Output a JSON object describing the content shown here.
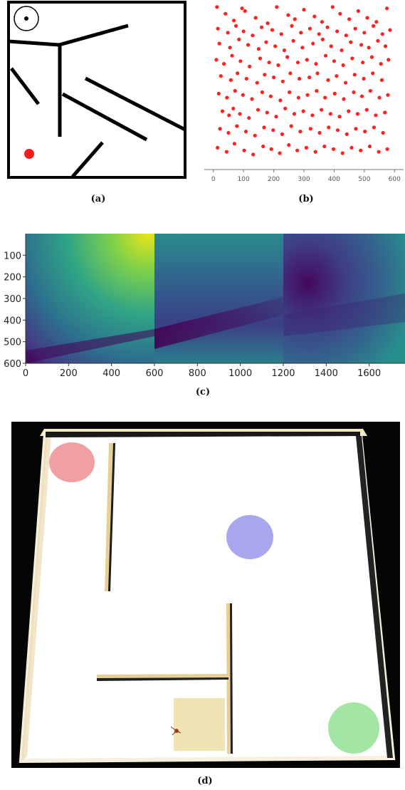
{
  "captions": {
    "a": "(a)",
    "b": "(b)",
    "c": "(c)",
    "d": "(d)"
  },
  "colors": {
    "maze_wall": "#000000",
    "goal_marker": "#ff1a1a",
    "scatter_point": "#ff2020",
    "arena_floor": "#ffffff",
    "arena_background": "#050505",
    "goal_red": "#f0a0a3",
    "goal_blue": "#a7a6ee",
    "goal_green": "#a3e6a3",
    "start_pad": "#f1e4b4"
  },
  "panel_a": {
    "walls_description_icon": "maze-map",
    "agent_icon": "agent-target-icon",
    "goal_icon": "goal-dot-icon"
  },
  "chart_data": [
    {
      "panel": "b",
      "type": "scatter",
      "title": "",
      "xlabel": "",
      "ylabel": "",
      "xlim": [
        -30,
        630
      ],
      "ylim": [
        0,
        600
      ],
      "x_ticks": [
        "0",
        "100",
        "200",
        "300",
        "400",
        "500",
        "600"
      ],
      "grid": false,
      "series": [
        {
          "x": [
            12,
            40,
            68,
            95,
            105,
            140,
            180,
            210,
            248,
            270,
            300,
            335,
            360,
            395,
            420,
            450,
            480,
            510,
            540,
            575,
            15,
            48,
            75,
            100,
            130,
            160,
            195,
            225,
            260,
            290,
            320,
            350,
            378,
            410,
            440,
            470,
            500,
            530,
            560,
            585,
            20,
            55,
            85,
            115,
            150,
            175,
            205,
            235,
            265,
            295,
            330,
            362,
            390,
            425,
            455,
            490,
            515,
            545,
            570,
            10,
            35,
            62,
            90,
            120,
            155,
            185,
            215,
            245,
            280,
            310,
            340,
            372,
            400,
            430,
            460,
            495,
            525,
            555,
            580,
            25,
            58,
            80,
            110,
            145,
            170,
            200,
            230,
            255,
            285,
            318,
            345,
            380,
            408,
            438,
            468,
            498,
            528,
            558,
            18,
            45,
            72,
            98,
            128,
            162,
            190,
            222,
            252,
            282,
            312,
            342,
            370,
            402,
            432,
            465,
            492,
            520,
            550,
            578,
            30,
            52,
            66,
            88,
            118,
            148,
            178,
            208,
            238,
            268,
            298,
            328,
            358,
            388,
            418,
            448,
            478,
            508,
            538,
            568,
            22,
            50,
            78,
            108,
            138,
            168,
            198,
            228,
            258,
            288,
            322,
            352,
            382,
            412,
            442,
            472,
            502,
            532,
            562,
            14,
            44,
            70,
            102,
            132,
            165,
            192,
            220,
            250,
            278,
            308,
            338,
            368,
            398,
            428,
            458,
            488,
            518,
            548,
            576
          ],
          "y": [
            590,
            565,
            540,
            585,
            575,
            550,
            530,
            590,
            560,
            545,
            580,
            555,
            535,
            590,
            565,
            545,
            575,
            550,
            535,
            585,
            510,
            495,
            520,
            500,
            485,
            515,
            505,
            490,
            520,
            495,
            510,
            490,
            515,
            500,
            485,
            510,
            495,
            520,
            490,
            505,
            455,
            440,
            470,
            450,
            435,
            460,
            445,
            430,
            465,
            440,
            455,
            470,
            445,
            430,
            460,
            450,
            440,
            465,
            445,
            395,
            380,
            410,
            390,
            370,
            400,
            385,
            375,
            405,
            385,
            395,
            380,
            410,
            390,
            375,
            400,
            385,
            405,
            380,
            395,
            335,
            320,
            345,
            325,
            310,
            340,
            330,
            315,
            345,
            325,
            330,
            345,
            320,
            335,
            310,
            340,
            325,
            345,
            320,
            270,
            255,
            280,
            265,
            250,
            275,
            260,
            245,
            275,
            255,
            265,
            280,
            255,
            270,
            250,
            275,
            260,
            280,
            255,
            265,
            205,
            190,
            215,
            195,
            180,
            210,
            200,
            185,
            215,
            195,
            205,
            190,
            210,
            195,
            185,
            205,
            195,
            210,
            190,
            200,
            140,
            125,
            150,
            130,
            115,
            145,
            135,
            120,
            150,
            130,
            140,
            125,
            145,
            135,
            120,
            140,
            130,
            145,
            125,
            70,
            55,
            85,
            60,
            45,
            75,
            65,
            50,
            80,
            60,
            70,
            55,
            75,
            65,
            50,
            70,
            60,
            75,
            55,
            65
          ]
        }
      ]
    },
    {
      "panel": "c",
      "type": "heatmap",
      "title": "",
      "xlabel": "",
      "ylabel": "",
      "xlim": [
        0,
        1800
      ],
      "ylim": [
        600,
        0
      ],
      "x_ticks": [
        "0",
        "200",
        "400",
        "600",
        "800",
        "1000",
        "1200",
        "1400",
        "1600"
      ],
      "y_ticks": [
        "100",
        "200",
        "300",
        "400",
        "500",
        "600"
      ],
      "colormap": "viridis",
      "sub_maps": 3
    }
  ]
}
